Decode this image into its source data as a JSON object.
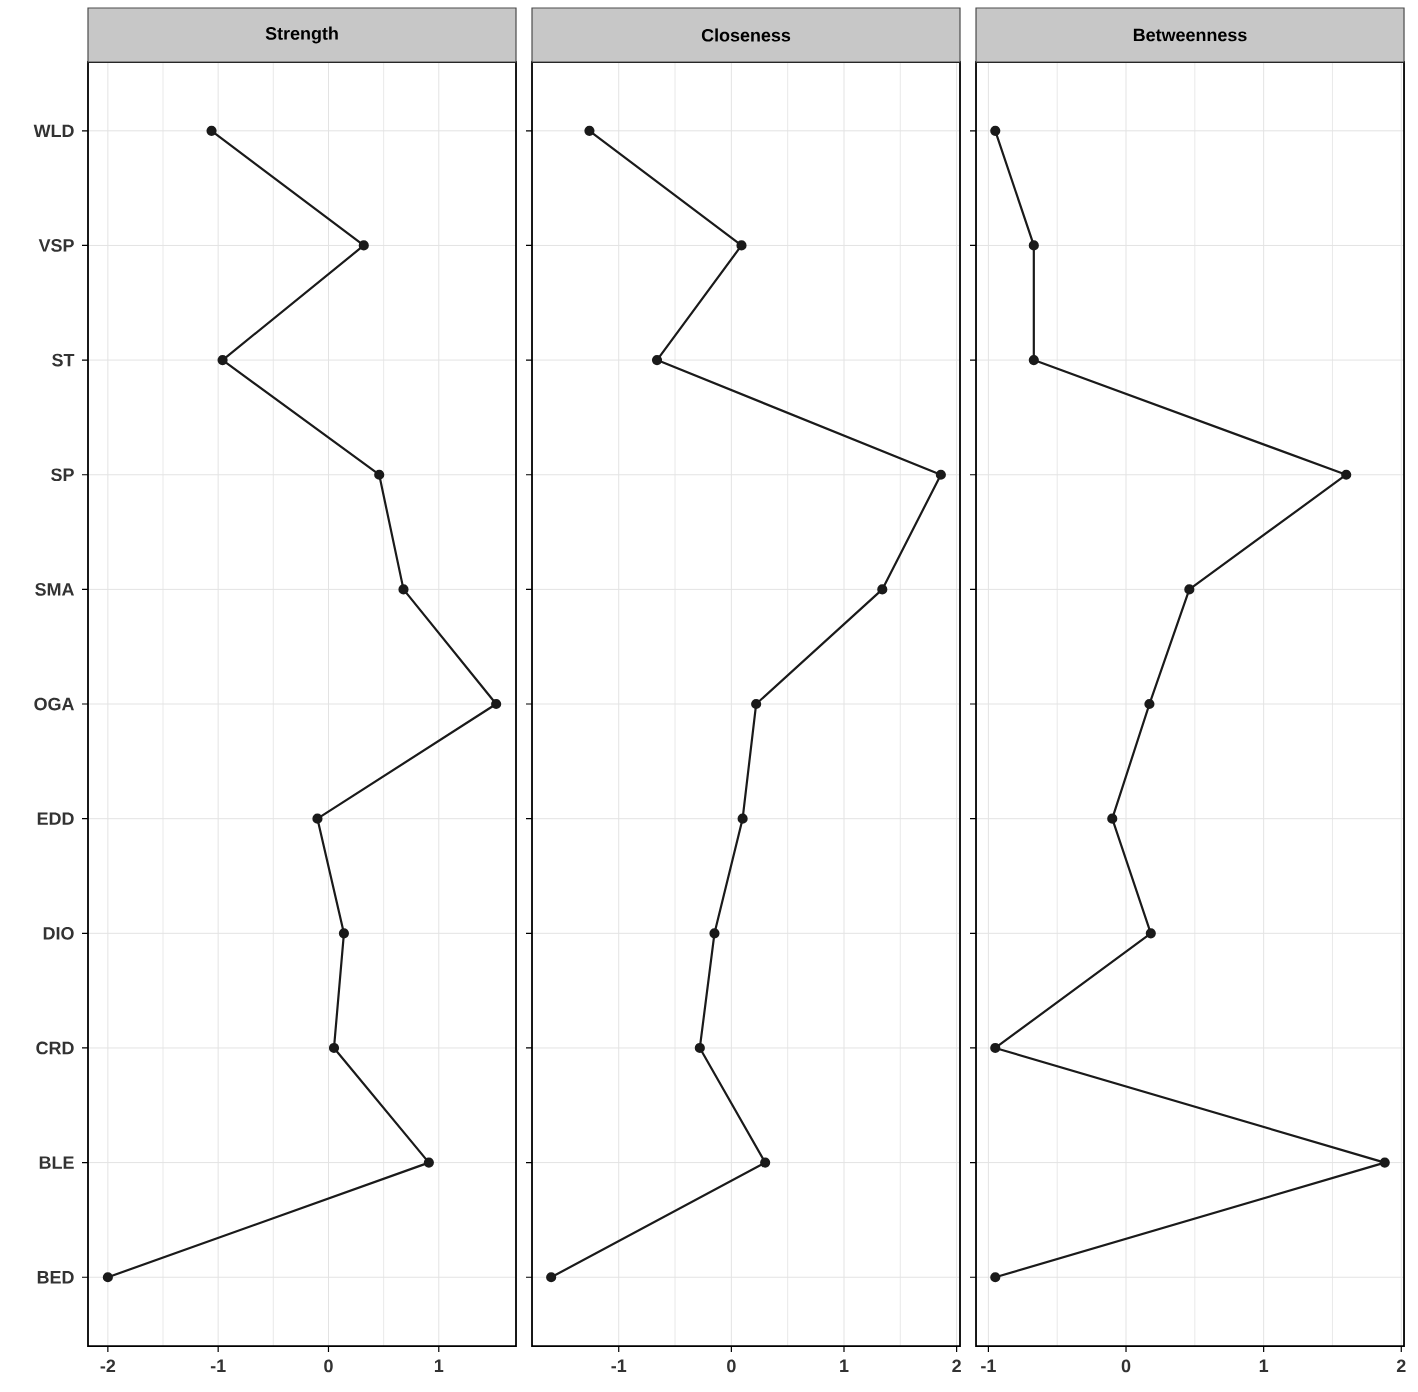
{
  "chart_data": [
    {
      "type": "line",
      "orientation": "horizontal",
      "title": "Strength",
      "categories": [
        "WLD",
        "VSP",
        "ST",
        "SP",
        "SMA",
        "OGA",
        "EDD",
        "DIO",
        "CRD",
        "BLE",
        "BED"
      ],
      "series": [
        {
          "color": "#1a1a1a",
          "values": [
            -1.06,
            0.32,
            -0.96,
            0.46,
            0.68,
            1.52,
            -0.1,
            0.14,
            0.05,
            0.91,
            -2.0
          ]
        }
      ],
      "xlim": [
        -2.18,
        1.7
      ],
      "xticks": [
        -2,
        -1,
        0,
        1
      ],
      "grid": true,
      "marker": "circle",
      "line_style": "solid"
    },
    {
      "type": "line",
      "orientation": "horizontal",
      "title": "Closeness",
      "categories": [
        null,
        null,
        null,
        null,
        null,
        null,
        null,
        null,
        null,
        null,
        null
      ],
      "series": [
        {
          "color": "#1a1a1a",
          "values": [
            -1.26,
            0.09,
            -0.66,
            1.86,
            1.34,
            0.22,
            0.1,
            -0.15,
            -0.28,
            0.3,
            -1.6
          ]
        }
      ],
      "xlim": [
        -1.77,
        2.03
      ],
      "xticks": [
        -1,
        0,
        1,
        2
      ],
      "grid": true,
      "marker": "circle",
      "line_style": "solid",
      "tick_labels": "x"
    },
    {
      "type": "line",
      "orientation": "horizontal",
      "title": "Betweenness",
      "categories": [
        null,
        null,
        null,
        null,
        null,
        null,
        null,
        null,
        null,
        null,
        null
      ],
      "series": [
        {
          "color": "#1a1a1a",
          "values": [
            -0.95,
            -0.67,
            -0.67,
            1.6,
            0.46,
            0.17,
            -0.1,
            0.18,
            -0.95,
            1.88,
            -0.95
          ]
        }
      ],
      "xlim": [
        -1.09,
        2.02
      ],
      "xticks": [
        -1,
        0,
        1,
        2
      ],
      "grid": true,
      "marker": "circle",
      "line_style": "solid",
      "tick_labels": "x"
    }
  ]
}
